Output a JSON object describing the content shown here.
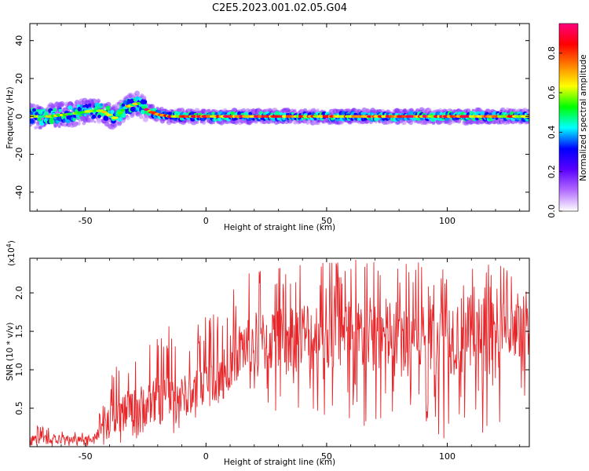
{
  "figure": {
    "title": "C2E5.2023.001.02.05.G04"
  },
  "chart_data": [
    {
      "type": "heatmap",
      "title": "C2E5.2023.001.02.05.G04",
      "xlabel": "Height of straight line (km)",
      "ylabel": "Frequency (Hz)",
      "xlim": [
        -73,
        134
      ],
      "ylim": [
        -50,
        49
      ],
      "xticks": [
        -50,
        0,
        50,
        100
      ],
      "yticks": [
        -40,
        -20,
        0,
        20,
        40
      ],
      "colorbar": {
        "label": "Normalized spectral amplitude",
        "range": [
          0.0,
          0.95
        ],
        "ticks": [
          0.0,
          0.2,
          0.4,
          0.6,
          0.8
        ],
        "colormap": [
          "#ffffff",
          "#b36bff",
          "#5a00ff",
          "#0000ff",
          "#00ffff",
          "#00ff00",
          "#ffff00",
          "#ff8000",
          "#ff0000",
          "#ff0080"
        ]
      },
      "ridge": {
        "x": [
          -73,
          -65,
          -58,
          -52,
          -47,
          -43,
          -38,
          -33,
          -28,
          -24,
          -20,
          -15,
          -10,
          -5,
          0,
          5,
          10,
          15,
          20,
          25,
          30,
          35,
          40,
          45,
          50,
          55,
          60,
          65,
          70,
          75,
          80,
          85,
          90,
          95,
          100,
          105,
          110,
          115,
          120,
          125,
          130,
          134
        ],
        "y": [
          0,
          0,
          1,
          2,
          3,
          3,
          -1,
          5,
          7,
          3,
          1,
          0,
          0,
          0,
          0,
          0,
          0,
          0,
          0,
          0,
          0,
          0,
          0,
          0,
          0,
          0,
          0,
          0,
          0,
          0,
          0,
          0,
          0,
          0,
          0,
          0,
          0,
          0,
          0,
          0,
          0,
          0
        ]
      },
      "grid": false
    },
    {
      "type": "line",
      "xlabel": "Height of straight line (km)",
      "ylabel": "SNR (10 * v/v)",
      "y_multiplier_label": "(x10",
      "y_multiplier_exp": "4",
      "xlim": [
        -73,
        134
      ],
      "ylim": [
        0,
        2.45
      ],
      "xticks": [
        -50,
        0,
        50,
        100
      ],
      "yticks": [
        0.5,
        1.0,
        1.5,
        2.0
      ],
      "ytick_labels": [
        "0.5",
        "1.0",
        "1.5",
        "2.0"
      ],
      "color": "#e8262a",
      "envelope": {
        "x": [
          -73,
          -60,
          -50,
          -45,
          -40,
          -35,
          -30,
          -25,
          -20,
          -15,
          -10,
          -5,
          0,
          5,
          10,
          15,
          20,
          30,
          40,
          50,
          60,
          70,
          80,
          90,
          100,
          110,
          120,
          130,
          134
        ],
        "mean": [
          0.1,
          0.1,
          0.09,
          0.15,
          0.3,
          0.45,
          0.5,
          0.55,
          0.6,
          0.62,
          0.65,
          0.7,
          0.8,
          0.9,
          1.1,
          1.3,
          1.35,
          1.4,
          1.45,
          1.45,
          1.45,
          1.45,
          1.45,
          1.45,
          1.45,
          1.45,
          1.45,
          1.45,
          1.4
        ],
        "max": [
          0.28,
          0.25,
          0.2,
          0.35,
          0.9,
          1.15,
          1.2,
          1.4,
          1.5,
          1.62,
          1.4,
          1.55,
          1.8,
          1.8,
          2.05,
          2.2,
          2.3,
          2.35,
          2.4,
          2.45,
          2.45,
          2.45,
          2.4,
          2.4,
          2.4,
          2.45,
          2.45,
          2.3,
          1.9
        ],
        "min": [
          0.0,
          0.0,
          0.0,
          0.0,
          0.0,
          0.05,
          0.1,
          0.1,
          0.1,
          0.15,
          0.2,
          0.3,
          0.4,
          0.5,
          0.5,
          0.5,
          0.5,
          0.4,
          0.3,
          0.2,
          0.2,
          0.2,
          0.2,
          0.1,
          0.1,
          0.1,
          0.2,
          0.3,
          0.7
        ]
      },
      "grid": false
    }
  ]
}
